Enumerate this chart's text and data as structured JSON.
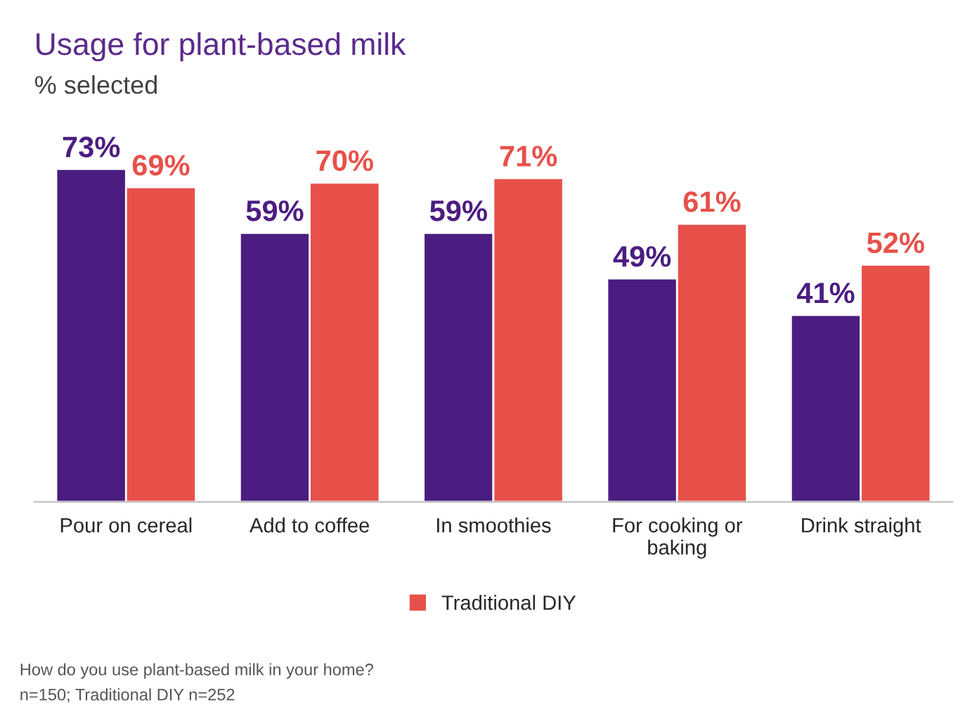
{
  "chart_data": {
    "type": "bar",
    "title": "Usage for plant-based milk",
    "subtitle": "% selected",
    "categories": [
      "Pour on cereal",
      "Add to coffee",
      "In smoothies",
      "For cooking or\nbaking",
      "Drink straight"
    ],
    "series": [
      {
        "color": "#4b1d80",
        "values": [
          73,
          59,
          59,
          49,
          41
        ],
        "value_labels": [
          "73%",
          "59%",
          "59%",
          "49%",
          "41%"
        ]
      },
      {
        "name": "Traditional DIY",
        "color": "#e8504a",
        "values": [
          69,
          70,
          71,
          61,
          52
        ],
        "value_labels": [
          "69%",
          "70%",
          "71%",
          "61%",
          "52%"
        ]
      }
    ],
    "legend": "bottom",
    "grid": false,
    "annotations": [
      "How do you use plant-based milk in your home?",
      "n=150; Traditional DIY n=252"
    ]
  }
}
